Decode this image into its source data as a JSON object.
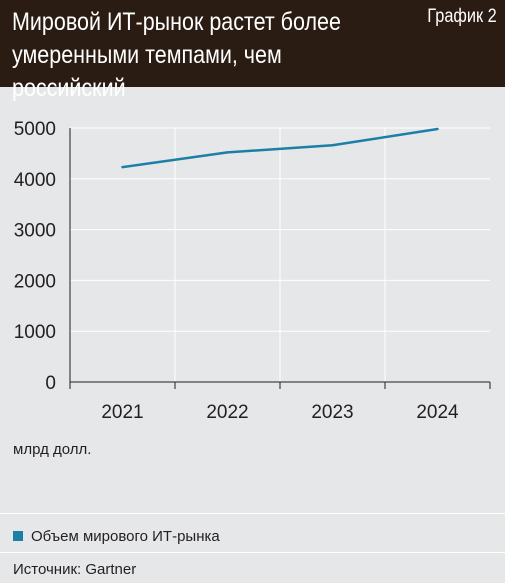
{
  "header": {
    "title": "Мировой ИТ-рынок растет более умеренными темпами, чем российский",
    "chart_label": "График 2"
  },
  "units_label": "млрд долл.",
  "legend": {
    "items": [
      {
        "label": "Объем мирового ИТ-рынка",
        "color": "#1b7fa6"
      }
    ]
  },
  "source": "Источник: Gartner",
  "colors": {
    "header_bg": "#2a1c12",
    "background": "#e6e7e8",
    "line": "#1b7fa6",
    "grid": "#ffffff",
    "axis": "#231f20"
  },
  "chart_data": {
    "type": "line",
    "categories": [
      "2021",
      "2022",
      "2023",
      "2024"
    ],
    "series": [
      {
        "name": "Объем мирового ИТ-рынка",
        "values": [
          4230,
          4520,
          4660,
          4980
        ]
      }
    ],
    "yticks": [
      "0",
      "1000",
      "2000",
      "3000",
      "4000",
      "5000"
    ],
    "ylim": [
      0,
      5000
    ],
    "ylabel": "млрд долл.",
    "xlabel": "",
    "grid": true,
    "legend_position": "bottom-left"
  }
}
